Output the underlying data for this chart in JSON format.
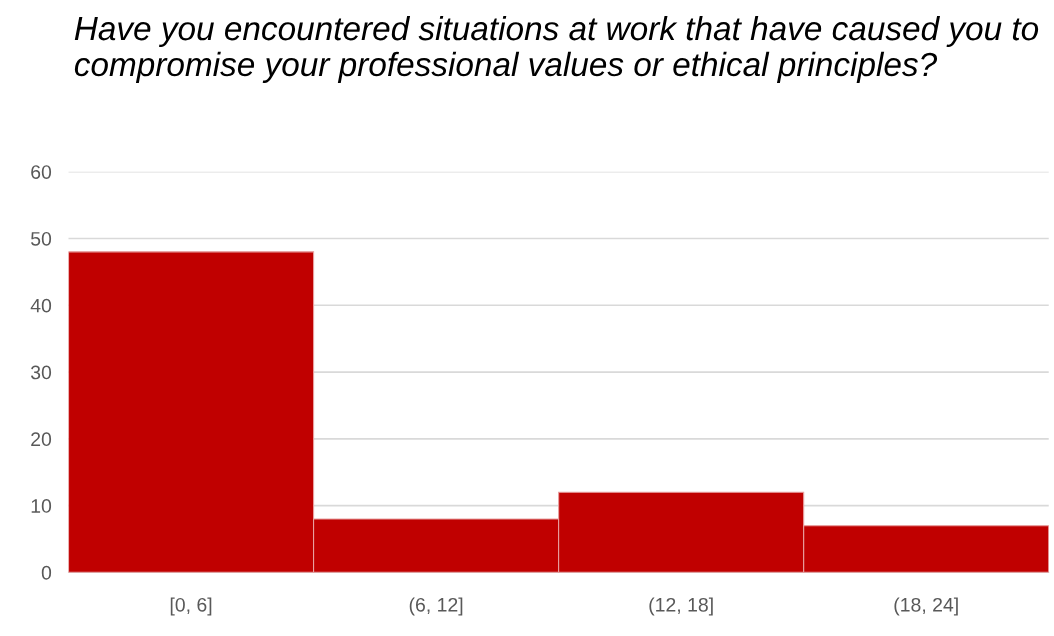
{
  "chart_data": {
    "type": "bar",
    "title": "Have you encountered situations at work that have caused you to compromise your professional values or ethical principles?",
    "categories": [
      "[0, 6]",
      "(6, 12]",
      "(12, 18]",
      "(18, 24]"
    ],
    "values": [
      48,
      8,
      12,
      7
    ],
    "color": "#c00000",
    "ylim": [
      0,
      60
    ],
    "yticks": [
      0,
      10,
      20,
      30,
      40,
      50,
      60
    ],
    "grid": "y"
  }
}
